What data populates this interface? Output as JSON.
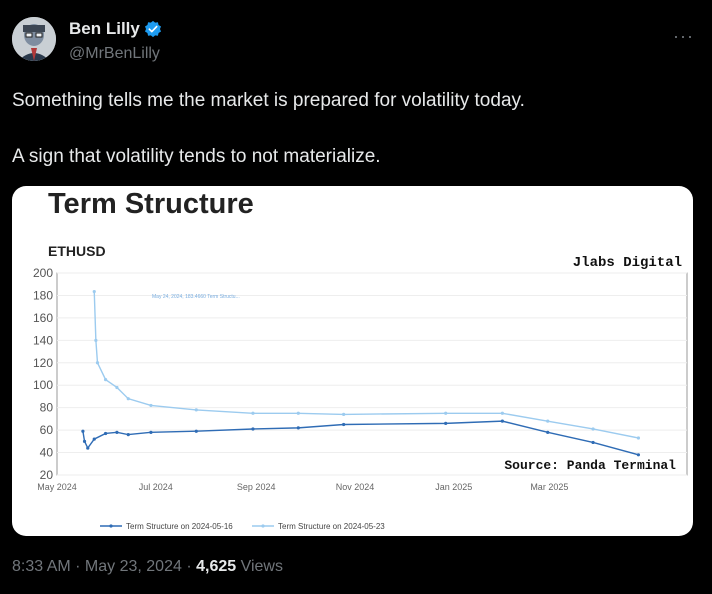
{
  "user": {
    "name": "Ben Lilly",
    "handle": "@MrBenLilly"
  },
  "more_label": "···",
  "tweet": {
    "line1": "Something tells me the market is prepared for volatility today.",
    "line2": "A sign that volatility tends to not materialize."
  },
  "chart_data": {
    "type": "line",
    "title": "Term Structure",
    "subtitle": "ETHUSD",
    "watermark": "Jlabs Digital",
    "source": "Source: Panda Terminal",
    "tooltip": "May 24, 2024, 183.4660 Term Structu...",
    "x_ticks": [
      "May 2024",
      "Jul 2024",
      "Sep 2024",
      "Nov 2024",
      "Jan 2025",
      "Mar 2025"
    ],
    "y_ticks": [
      20,
      40,
      60,
      80,
      100,
      120,
      140,
      160,
      180,
      200
    ],
    "ylim": [
      20,
      200
    ],
    "series": [
      {
        "name": "Term Structure on 2024-05-16",
        "color": "#2f6cb5",
        "points": [
          [
            "2024-05-17",
            59
          ],
          [
            "2024-05-18",
            50
          ],
          [
            "2024-05-20",
            44
          ],
          [
            "2024-05-24",
            52
          ],
          [
            "2024-05-31",
            57
          ],
          [
            "2024-06-07",
            58
          ],
          [
            "2024-06-14",
            56
          ],
          [
            "2024-06-28",
            58
          ],
          [
            "2024-07-26",
            59
          ],
          [
            "2024-08-30",
            61
          ],
          [
            "2024-09-27",
            62
          ],
          [
            "2024-10-25",
            65
          ],
          [
            "2024-12-27",
            66
          ],
          [
            "2025-01-31",
            68
          ],
          [
            "2025-02-28",
            58
          ],
          [
            "2025-03-28",
            49
          ],
          [
            "2025-04-25",
            38
          ]
        ]
      },
      {
        "name": "Term Structure on 2024-05-23",
        "color": "#9ccbef",
        "points": [
          [
            "2024-05-24",
            183.47
          ],
          [
            "2024-05-25",
            140
          ],
          [
            "2024-05-26",
            120
          ],
          [
            "2024-05-31",
            105
          ],
          [
            "2024-06-07",
            98
          ],
          [
            "2024-06-14",
            88
          ],
          [
            "2024-06-28",
            82
          ],
          [
            "2024-07-26",
            78
          ],
          [
            "2024-08-30",
            75
          ],
          [
            "2024-09-27",
            75
          ],
          [
            "2024-10-25",
            74
          ],
          [
            "2024-12-27",
            75
          ],
          [
            "2025-01-31",
            75
          ],
          [
            "2025-02-28",
            68
          ],
          [
            "2025-03-28",
            61
          ],
          [
            "2025-04-25",
            53
          ]
        ]
      }
    ]
  },
  "footer": {
    "time": "8:33 AM",
    "date": "May 23, 2024",
    "views_count": "4,625",
    "views_label": "Views"
  }
}
